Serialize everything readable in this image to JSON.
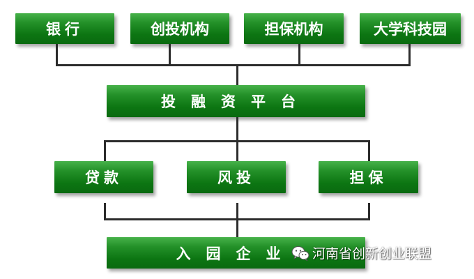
{
  "top_row": [
    "银行",
    "创投机构",
    "担保机构",
    "大学科技园"
  ],
  "platform": "投融资平台",
  "middle_row": [
    "贷款",
    "风投",
    "担保"
  ],
  "bottom": "入园企业",
  "watermark": "河南省创新创业联盟",
  "colors": {
    "box_green": "#0c7512",
    "line": "#2c2c2c",
    "text": "#ffffff"
  }
}
